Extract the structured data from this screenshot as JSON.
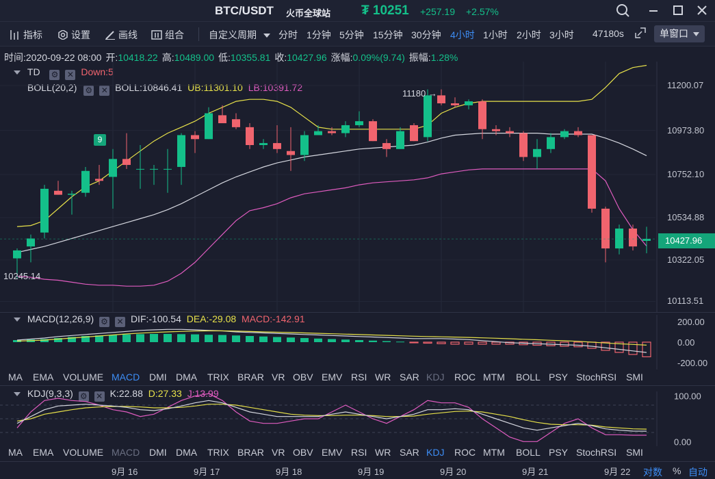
{
  "header": {
    "pair": "BTC/USDT",
    "exchange": "火币全球站",
    "price": "₮ 10251",
    "change": "+257.19",
    "change_pct": "+2.57%"
  },
  "toolbar": {
    "indicators": "指标",
    "settings": "设置",
    "draw": "画线",
    "combine": "组合",
    "custom_period": "自定义周期",
    "periods": [
      "分时",
      "1分钟",
      "5分钟",
      "15分钟",
      "30分钟",
      "4小时",
      "1小时",
      "2小时",
      "3小时"
    ],
    "active_period": "4小时",
    "countdown": "47180s",
    "window_mode": "单窗口"
  },
  "infobar": {
    "time": "时间:2020-09-22 08:00",
    "open_label": "开:",
    "open": "10418.22",
    "high_label": "高:",
    "high": "10489.00",
    "low_label": "低:",
    "low": "10355.81",
    "close_label": "收:",
    "close": "10427.96",
    "amp_label": "涨幅:",
    "amp": "0.09%(9.74)",
    "swing_label": "振幅:",
    "swing": "1.28%"
  },
  "overlays": {
    "td_name": "TD",
    "td_value": "Down:5",
    "boll_name": "BOLL(20,2)",
    "boll_mid": "BOLL:10846.41",
    "boll_ub": "UB:11301.10",
    "boll_lb": "LB:10391.72"
  },
  "annotations": {
    "td_count": "9",
    "high_marker": "11180 →",
    "low_marker": "10245.14"
  },
  "price_axis": {
    "ticks": [
      "11200.07",
      "10973.80",
      "10752.10",
      "10534.88",
      "10322.05",
      "10113.51"
    ],
    "current": "10427.96"
  },
  "macd": {
    "name": "MACD(12,26,9)",
    "dif": "DIF:-100.54",
    "dea": "DEA:-29.08",
    "macd": "MACD:-142.91",
    "ticks": [
      "200.00",
      "0.00",
      "-200.00"
    ]
  },
  "kdj": {
    "name": "KDJ(9,3,3)",
    "k": "K:22.88",
    "d": "D:27.33",
    "j": "J:13.99",
    "ticks": [
      "100.00",
      "0.00"
    ]
  },
  "indicator_tabs": [
    "MA",
    "EMA",
    "VOLUME",
    "MACD",
    "DMI",
    "DMA",
    "TRIX",
    "BRAR",
    "VR",
    "OBV",
    "EMV",
    "RSI",
    "WR",
    "SAR",
    "KDJ",
    "ROC",
    "MTM",
    "BOLL",
    "PSY",
    "StochRSI",
    "SMI"
  ],
  "date_axis": [
    "9月 16",
    "9月 17",
    "9月 18",
    "9月 19",
    "9月 20",
    "9月 21",
    "9月 22"
  ],
  "footer": {
    "log": "对数",
    "pct": "%",
    "auto": "自动"
  },
  "colors": {
    "up": "#14c08a",
    "down": "#f0646e",
    "boll_ub": "#e8e24a",
    "boll_lb": "#e05cc0",
    "boll_mid": "#d6d8e0",
    "active": "#3d8df5"
  },
  "chart_data": {
    "type": "candlestick",
    "interval": "4小时",
    "candles": [
      {
        "o": 10330,
        "h": 10380,
        "l": 10230,
        "c": 10370
      },
      {
        "o": 10390,
        "h": 10450,
        "l": 10310,
        "c": 10430
      },
      {
        "o": 10460,
        "h": 10700,
        "l": 10430,
        "c": 10680
      },
      {
        "o": 10670,
        "h": 10720,
        "l": 10650,
        "c": 10650
      },
      {
        "o": 10650,
        "h": 10670,
        "l": 10550,
        "c": 10655
      },
      {
        "o": 10660,
        "h": 10790,
        "l": 10640,
        "c": 10770
      },
      {
        "o": 10730,
        "h": 10800,
        "l": 10700,
        "c": 10720
      },
      {
        "o": 10740,
        "h": 10880,
        "l": 10580,
        "c": 10830
      },
      {
        "o": 10830,
        "h": 10960,
        "l": 10780,
        "c": 10800
      },
      {
        "o": 10780,
        "h": 10900,
        "l": 10680,
        "c": 10780
      },
      {
        "o": 10780,
        "h": 10800,
        "l": 10700,
        "c": 10780
      },
      {
        "o": 10780,
        "h": 10880,
        "l": 10660,
        "c": 10780
      },
      {
        "o": 10790,
        "h": 10960,
        "l": 10700,
        "c": 10950
      },
      {
        "o": 10950,
        "h": 10970,
        "l": 10860,
        "c": 10930
      },
      {
        "o": 10930,
        "h": 11090,
        "l": 10930,
        "c": 11060
      },
      {
        "o": 11050,
        "h": 11100,
        "l": 11010,
        "c": 11010
      },
      {
        "o": 11030,
        "h": 11060,
        "l": 10980,
        "c": 10990
      },
      {
        "o": 10990,
        "h": 11010,
        "l": 10880,
        "c": 10900
      },
      {
        "o": 10900,
        "h": 10930,
        "l": 10880,
        "c": 10910
      },
      {
        "o": 10910,
        "h": 11000,
        "l": 10860,
        "c": 10880
      },
      {
        "o": 10870,
        "h": 10990,
        "l": 10770,
        "c": 10850
      },
      {
        "o": 10850,
        "h": 10970,
        "l": 10820,
        "c": 10950
      },
      {
        "o": 10950,
        "h": 11000,
        "l": 10950,
        "c": 10970
      },
      {
        "o": 10970,
        "h": 10990,
        "l": 10950,
        "c": 10960
      },
      {
        "o": 10960,
        "h": 11020,
        "l": 10940,
        "c": 11000
      },
      {
        "o": 11000,
        "h": 11070,
        "l": 10990,
        "c": 11020
      },
      {
        "o": 11020,
        "h": 11030,
        "l": 10920,
        "c": 10920
      },
      {
        "o": 10910,
        "h": 10930,
        "l": 10840,
        "c": 10880
      },
      {
        "o": 10880,
        "h": 10990,
        "l": 10880,
        "c": 10970
      },
      {
        "o": 11000,
        "h": 11010,
        "l": 10920,
        "c": 10920
      },
      {
        "o": 10940,
        "h": 11180,
        "l": 10920,
        "c": 11150
      },
      {
        "o": 11150,
        "h": 11180,
        "l": 11100,
        "c": 11110
      },
      {
        "o": 11110,
        "h": 11140,
        "l": 11090,
        "c": 11100
      },
      {
        "o": 11100,
        "h": 11130,
        "l": 11080,
        "c": 11120
      },
      {
        "o": 11120,
        "h": 11130,
        "l": 10930,
        "c": 10980
      },
      {
        "o": 10980,
        "h": 11000,
        "l": 10950,
        "c": 10970
      },
      {
        "o": 10970,
        "h": 10990,
        "l": 10940,
        "c": 10960
      },
      {
        "o": 10960,
        "h": 10970,
        "l": 10820,
        "c": 10840
      },
      {
        "o": 10840,
        "h": 10930,
        "l": 10780,
        "c": 10880
      },
      {
        "o": 10880,
        "h": 10960,
        "l": 10860,
        "c": 10940
      },
      {
        "o": 10940,
        "h": 10980,
        "l": 10930,
        "c": 10970
      },
      {
        "o": 10970,
        "h": 10990,
        "l": 10940,
        "c": 10950
      },
      {
        "o": 10950,
        "h": 10950,
        "l": 10560,
        "c": 10580
      },
      {
        "o": 10580,
        "h": 10590,
        "l": 10310,
        "c": 10380
      },
      {
        "o": 10380,
        "h": 10500,
        "l": 10350,
        "c": 10480
      },
      {
        "o": 10480,
        "h": 10500,
        "l": 10370,
        "c": 10390
      },
      {
        "o": 10418.22,
        "h": 10489,
        "l": 10355.81,
        "c": 10427.96
      }
    ],
    "boll_ub": [
      10490,
      10495,
      10520,
      10580,
      10640,
      10690,
      10720,
      10770,
      10820,
      10870,
      10920,
      10960,
      10990,
      11020,
      11060,
      11090,
      11120,
      11130,
      11130,
      11120,
      11090,
      11040,
      10990,
      10980,
      10980,
      10980,
      10980,
      10980,
      10980,
      10980,
      11000,
      11060,
      11090,
      11110,
      11120,
      11120,
      11120,
      11120,
      11120,
      11120,
      11120,
      11120,
      11130,
      11190,
      11260,
      11290,
      11301.1
    ],
    "boll_mid": [
      10360,
      10375,
      10390,
      10410,
      10430,
      10450,
      10470,
      10490,
      10510,
      10530,
      10550,
      10575,
      10605,
      10640,
      10675,
      10710,
      10740,
      10765,
      10790,
      10810,
      10825,
      10840,
      10850,
      10860,
      10870,
      10880,
      10885,
      10890,
      10895,
      10900,
      10915,
      10935,
      10950,
      10955,
      10960,
      10960,
      10960,
      10960,
      10960,
      10955,
      10955,
      10955,
      10955,
      10935,
      10910,
      10880,
      10846.41
    ],
    "boll_lb": [
      10240,
      10235,
      10225,
      10220,
      10210,
      10200,
      10195,
      10195,
      10190,
      10190,
      10195,
      10215,
      10255,
      10310,
      10380,
      10450,
      10520,
      10570,
      10585,
      10605,
      10635,
      10655,
      10665,
      10675,
      10685,
      10700,
      10710,
      10715,
      10720,
      10725,
      10735,
      10755,
      10765,
      10775,
      10780,
      10780,
      10780,
      10780,
      10780,
      10780,
      10780,
      10780,
      10780,
      10720,
      10580,
      10475,
      10391.72
    ],
    "price_range": [
      10060,
      11320
    ],
    "macd_hist": [
      20,
      25,
      30,
      40,
      50,
      60,
      65,
      70,
      75,
      78,
      80,
      80,
      78,
      76,
      72,
      70,
      65,
      60,
      55,
      50,
      45,
      40,
      35,
      30,
      25,
      20,
      15,
      10,
      5,
      -5,
      -10,
      -15,
      -20,
      -20,
      -20,
      -20,
      -20,
      -25,
      -30,
      -35,
      -40,
      -45,
      -60,
      -80,
      -100,
      -120,
      -142.91
    ],
    "macd_dif": [
      20,
      30,
      40,
      55,
      65,
      75,
      85,
      95,
      105,
      115,
      120,
      125,
      125,
      120,
      115,
      110,
      100,
      95,
      90,
      85,
      80,
      75,
      70,
      65,
      60,
      55,
      50,
      45,
      40,
      35,
      35,
      35,
      30,
      25,
      15,
      5,
      -5,
      -10,
      -15,
      -20,
      -25,
      -30,
      -40,
      -55,
      -70,
      -85,
      -100.54
    ],
    "macd_dea": [
      10,
      15,
      20,
      30,
      40,
      50,
      60,
      70,
      80,
      88,
      95,
      100,
      105,
      108,
      110,
      110,
      108,
      104,
      100,
      97,
      94,
      90,
      86,
      82,
      78,
      74,
      70,
      66,
      62,
      58,
      55,
      52,
      49,
      46,
      42,
      38,
      33,
      28,
      23,
      18,
      13,
      8,
      0,
      -8,
      -16,
      -22,
      -29.08
    ],
    "macd_range": [
      -200,
      200
    ],
    "kdj_k": [
      40,
      55,
      70,
      78,
      80,
      82,
      80,
      78,
      75,
      70,
      68,
      72,
      78,
      85,
      90,
      85,
      75,
      65,
      60,
      55,
      55,
      55,
      55,
      60,
      65,
      60,
      55,
      50,
      55,
      60,
      70,
      70,
      72,
      70,
      60,
      50,
      40,
      30,
      25,
      30,
      35,
      40,
      35,
      28,
      25,
      23,
      22.88
    ],
    "kdj_d": [
      45,
      50,
      60,
      65,
      70,
      74,
      76,
      77,
      77,
      76,
      74,
      74,
      75,
      78,
      82,
      82,
      80,
      75,
      70,
      65,
      60,
      58,
      57,
      57,
      58,
      58,
      57,
      55,
      55,
      56,
      60,
      63,
      66,
      67,
      65,
      60,
      55,
      48,
      42,
      38,
      37,
      37,
      36,
      32,
      30,
      28,
      27.33
    ],
    "kdj_j": [
      30,
      65,
      90,
      95,
      90,
      88,
      80,
      70,
      65,
      55,
      60,
      75,
      90,
      100,
      105,
      90,
      65,
      45,
      40,
      40,
      45,
      50,
      50,
      65,
      80,
      65,
      50,
      40,
      55,
      70,
      90,
      85,
      85,
      75,
      50,
      30,
      10,
      0,
      0,
      20,
      40,
      50,
      30,
      15,
      15,
      14,
      13.99
    ],
    "kdj_range": [
      -10,
      110
    ]
  }
}
